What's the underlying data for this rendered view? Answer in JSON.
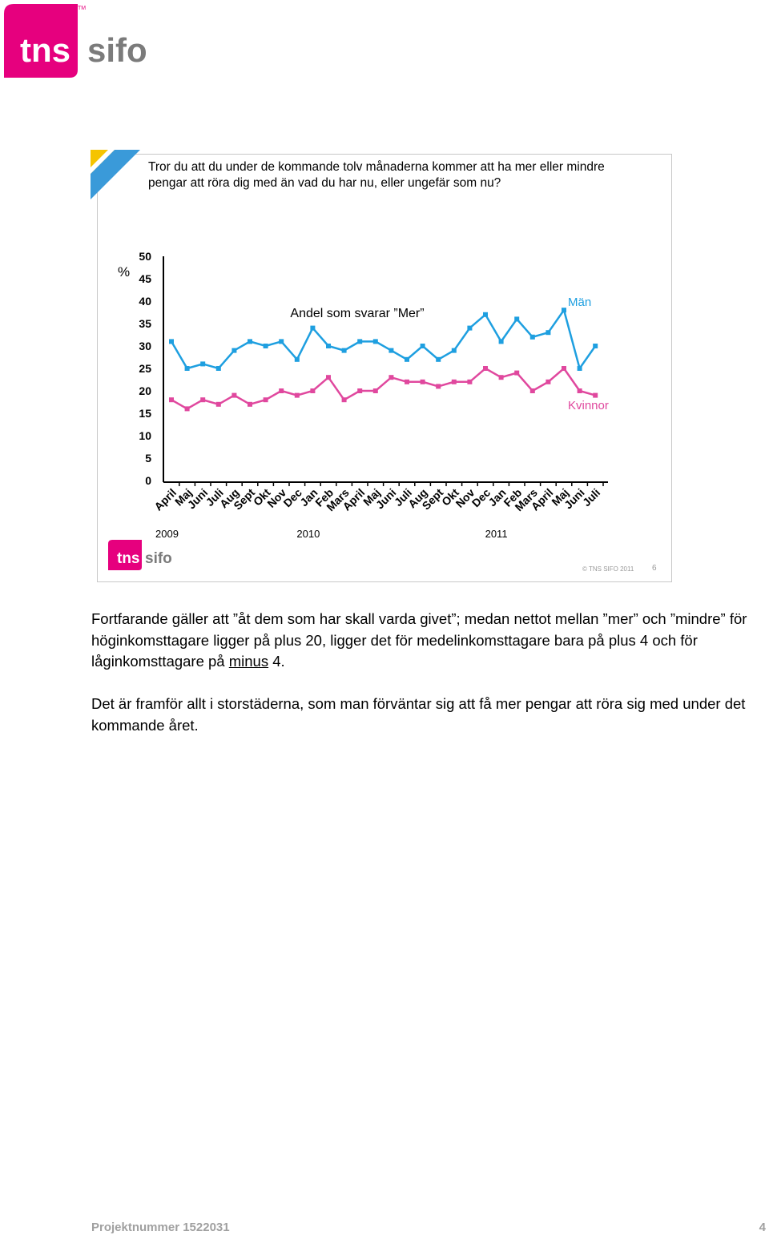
{
  "logo": {
    "tns": "tns",
    "sifo": "sifo",
    "tm": "TM"
  },
  "slide": {
    "question": "Tror du att du under de kommande tolv månaderna kommer att ha mer eller mindre pengar att röra dig med än vad du har nu, eller ungefär som nu?",
    "copyright": "© TNS SIFO 2011",
    "slide_number": "6"
  },
  "chart_data": {
    "type": "line",
    "title": "Andel som svarar ”Mer”",
    "ylabel": "%",
    "ylim": [
      0,
      50
    ],
    "yticks": [
      0,
      5,
      10,
      15,
      20,
      25,
      30,
      35,
      40,
      45,
      50
    ],
    "categories": [
      "April",
      "Maj",
      "Juni",
      "Juli",
      "Aug",
      "Sept",
      "Okt",
      "Nov",
      "Dec",
      "Jan",
      "Feb",
      "Mars",
      "April",
      "Maj",
      "Juni",
      "Juli",
      "Aug",
      "Sept",
      "Okt",
      "Nov",
      "Dec",
      "Jan",
      "Feb",
      "Mars",
      "April",
      "Maj",
      "Juni",
      "Juli"
    ],
    "years": [
      {
        "label": "2009",
        "index": 0
      },
      {
        "label": "2010",
        "index": 9
      },
      {
        "label": "2011",
        "index": 21
      }
    ],
    "grid": false,
    "series": [
      {
        "name": "Män",
        "color": "#1e9fe0",
        "values": [
          31,
          25,
          26,
          25,
          29,
          31,
          30,
          31,
          27,
          34,
          30,
          29,
          31,
          31,
          29,
          27,
          30,
          27,
          29,
          34,
          37,
          31,
          36,
          32,
          33,
          38,
          25,
          30
        ]
      },
      {
        "name": "Kvinnor",
        "color": "#e0489e",
        "values": [
          18,
          16,
          18,
          17,
          19,
          17,
          18,
          20,
          19,
          20,
          23,
          18,
          20,
          20,
          23,
          22,
          22,
          21,
          22,
          22,
          25,
          23,
          24,
          20,
          22,
          25,
          20,
          19
        ]
      }
    ]
  },
  "body": {
    "p1_before": "Fortfarande gäller att ”åt dem som har skall varda givet”; medan nettot mellan ”mer” och ”mindre” för höginkomsttagare ligger på plus 20, ligger det för medelinkomsttagare bara på plus 4 och för låginkomsttagare på ",
    "p1_underlined": "minus",
    "p1_after": " 4.",
    "p2": "Det är framför allt i storstäderna, som man förväntar sig att få mer pengar att röra sig med under det kommande året."
  },
  "footer": {
    "project": "Projektnummer 1522031",
    "page": "4"
  },
  "colors": {
    "brand_pink": "#e6007e",
    "brand_grey": "#7b7b7b",
    "accent_blue": "#3a9ad9",
    "accent_yellow": "#f5c400"
  }
}
